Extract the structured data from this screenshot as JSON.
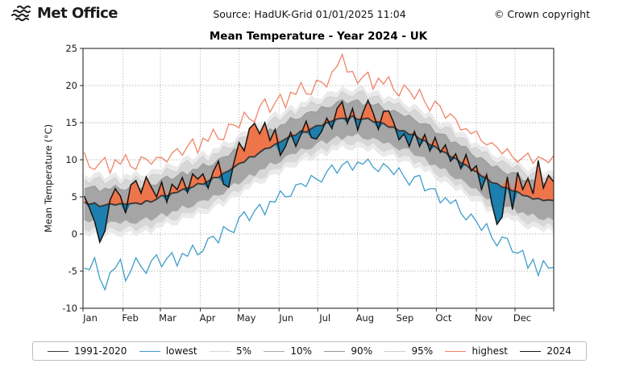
{
  "header": {
    "logo_text": "Met Office",
    "source": "Source: HadUK-Grid 01/01/2025 11:04",
    "copyright": "© Crown copyright"
  },
  "legend": {
    "entries": [
      {
        "label": "1991-2020",
        "color": "#3a3a3a"
      },
      {
        "label": "lowest",
        "color": "#3f9dc9"
      },
      {
        "label": "5%",
        "color": "#d6d6d6"
      },
      {
        "label": "10%",
        "color": "#ababab"
      },
      {
        "label": "90%",
        "color": "#969696"
      },
      {
        "label": "95%",
        "color": "#cdcdcd"
      },
      {
        "label": "highest",
        "color": "#ef8468"
      },
      {
        "label": "2024",
        "color": "#141414"
      }
    ]
  },
  "chart_data": {
    "type": "line",
    "title": "Mean Temperature - Year 2024 - UK",
    "ylabel": "Mean Temperature (°C)",
    "ylim": [
      -10,
      25
    ],
    "yticks": [
      -10,
      -5,
      0,
      5,
      10,
      15,
      20,
      25
    ],
    "grid": true,
    "grid_color": "#9b9b9b",
    "legend_position": "bottom",
    "x_months": [
      "Jan",
      "Feb",
      "Mar",
      "Apr",
      "May",
      "Jun",
      "Jul",
      "Aug",
      "Sep",
      "Oct",
      "Nov",
      "Dec"
    ],
    "month_start_day": [
      1,
      32,
      61,
      92,
      122,
      153,
      183,
      214,
      245,
      275,
      306,
      336
    ],
    "days_in_year": 366,
    "band_fills": {
      "fringe": "#eaeaea",
      "p5_p95": "#d7d7d7",
      "p10_p90": "#a5a5a5"
    },
    "anomaly_fills": {
      "above_mean": "#ee744a",
      "below_mean": "#1d7fad"
    },
    "x_day_of_year": [
      2,
      6,
      10,
      14,
      18,
      22,
      26,
      30,
      34,
      38,
      42,
      46,
      50,
      54,
      58,
      62,
      66,
      70,
      74,
      78,
      82,
      86,
      90,
      94,
      98,
      102,
      106,
      110,
      114,
      118,
      122,
      126,
      130,
      134,
      138,
      142,
      146,
      150,
      154,
      158,
      162,
      166,
      170,
      174,
      178,
      182,
      186,
      190,
      194,
      198,
      202,
      206,
      210,
      214,
      218,
      222,
      226,
      230,
      234,
      238,
      242,
      246,
      250,
      254,
      258,
      262,
      266,
      270,
      274,
      278,
      282,
      286,
      290,
      294,
      298,
      302,
      306,
      310,
      314,
      318,
      322,
      326,
      330,
      334,
      338,
      342,
      346,
      350,
      354,
      358,
      362,
      366
    ],
    "series": [
      {
        "name": "1991-2020",
        "color": "#3a3a3a",
        "values": [
          4.3,
          4.0,
          4.2,
          3.7,
          3.9,
          4.1,
          3.9,
          4.1,
          4.0,
          4.1,
          4.2,
          4.0,
          4.5,
          4.3,
          4.7,
          5.2,
          5.1,
          5.5,
          5.6,
          6.0,
          6.2,
          6.3,
          6.8,
          6.7,
          7.1,
          7.6,
          7.6,
          8.2,
          8.5,
          9.0,
          9.5,
          9.7,
          10.4,
          10.4,
          11.0,
          11.5,
          11.6,
          12.1,
          12.4,
          12.8,
          13.2,
          13.3,
          13.9,
          13.7,
          14.2,
          14.6,
          14.6,
          15.0,
          15.2,
          15.5,
          15.6,
          15.5,
          15.9,
          15.4,
          15.5,
          15.6,
          15.1,
          15.1,
          14.9,
          14.4,
          14.4,
          13.9,
          13.9,
          13.4,
          13.4,
          12.8,
          12.6,
          12.0,
          11.8,
          11.2,
          11.0,
          10.4,
          10.2,
          9.6,
          9.3,
          8.7,
          8.4,
          7.8,
          7.5,
          6.9,
          6.8,
          6.3,
          6.2,
          5.8,
          5.7,
          5.2,
          5.1,
          4.7,
          4.8,
          4.5,
          4.6,
          4.5
        ]
      },
      {
        "name": "lowest",
        "color": "#3f9dc9",
        "values": [
          -4.6,
          -4.8,
          -3.2,
          -6.0,
          -7.5,
          -5.2,
          -4.6,
          -3.4,
          -6.3,
          -5.0,
          -3.2,
          -4.4,
          -5.3,
          -3.6,
          -2.8,
          -4.4,
          -3.3,
          -2.5,
          -4.3,
          -2.6,
          -3.0,
          -1.5,
          -2.8,
          -2.3,
          -0.6,
          -0.3,
          -1.2,
          1.0,
          0.5,
          0.2,
          2.2,
          3.0,
          1.8,
          3.1,
          4.0,
          2.6,
          4.4,
          4.3,
          5.8,
          5.0,
          5.1,
          6.6,
          6.8,
          6.4,
          7.9,
          7.4,
          7.0,
          8.4,
          9.3,
          8.2,
          9.3,
          9.8,
          8.6,
          9.7,
          9.4,
          10.1,
          9.0,
          8.4,
          9.5,
          8.9,
          8.0,
          8.9,
          7.7,
          6.6,
          7.7,
          7.9,
          5.8,
          6.1,
          6.1,
          4.2,
          4.9,
          4.1,
          4.6,
          2.8,
          1.9,
          2.7,
          1.7,
          0.5,
          1.4,
          -0.5,
          -1.6,
          -0.4,
          -0.6,
          -2.4,
          -2.6,
          -2.2,
          -4.6,
          -3.4,
          -5.6,
          -3.6,
          -4.6,
          -4.5
        ]
      },
      {
        "name": "5%",
        "color": "#d6d6d6",
        "values": [
          0.7,
          0.4,
          1.0,
          0.7,
          0.3,
          1.0,
          0.6,
          0.3,
          0.9,
          1.2,
          0.4,
          0.9,
          1.3,
          0.7,
          1.6,
          1.6,
          2.4,
          1.9,
          1.9,
          2.9,
          2.9,
          2.8,
          3.7,
          3.5,
          3.4,
          4.3,
          4.9,
          4.4,
          5.3,
          5.9,
          5.6,
          6.7,
          6.8,
          7.8,
          7.5,
          7.6,
          8.7,
          8.8,
          8.8,
          9.8,
          9.7,
          9.7,
          10.6,
          11.1,
          10.5,
          11.2,
          11.7,
          11.1,
          12.1,
          12.0,
          12.7,
          12.1,
          12.0,
          12.6,
          12.3,
          11.8,
          12.3,
          11.6,
          11.1,
          11.4,
          11.5,
          10.3,
          10.6,
          10.5,
          9.5,
          9.8,
          9.1,
          9.3,
          8.2,
          7.6,
          7.9,
          7.3,
          6.5,
          6.8,
          5.8,
          5.1,
          5.2,
          5.1,
          3.7,
          3.8,
          3.7,
          2.6,
          3.0,
          2.5,
          2.6,
          1.8,
          1.3,
          1.8,
          1.5,
          1.0,
          1.6,
          0.9
        ]
      },
      {
        "name": "10%",
        "color": "#ababab",
        "values": [
          1.9,
          1.6,
          2.0,
          1.3,
          1.2,
          1.7,
          1.7,
          1.4,
          1.9,
          1.5,
          1.4,
          1.9,
          2.3,
          1.8,
          2.3,
          2.9,
          2.4,
          3.1,
          3.1,
          3.9,
          3.5,
          3.7,
          4.4,
          4.6,
          4.5,
          5.3,
          5.2,
          5.4,
          6.3,
          6.9,
          6.7,
          7.4,
          8.1,
          7.8,
          8.7,
          8.8,
          9.7,
          9.4,
          9.7,
          10.5,
          10.8,
          10.8,
          11.6,
          11.4,
          11.5,
          12.2,
          12.7,
          12.2,
          12.8,
          13.3,
          12.7,
          13.3,
          13.2,
          13.6,
          12.9,
          12.7,
          13.0,
          12.7,
          12.2,
          12.4,
          11.8,
          11.3,
          11.6,
          11.5,
          10.6,
          10.5,
          10.4,
          9.3,
          9.4,
          8.8,
          8.9,
          7.9,
          7.4,
          7.5,
          6.9,
          6.2,
          6.2,
          5.4,
          4.7,
          4.8,
          4.7,
          3.7,
          3.7,
          3.8,
          2.8,
          3.0,
          2.5,
          2.8,
          2.1,
          1.9,
          2.3,
          1.9
        ]
      },
      {
        "name": "90%",
        "color": "#969696",
        "values": [
          6.1,
          6.3,
          6.5,
          5.7,
          6.2,
          6.0,
          6.6,
          6.0,
          5.9,
          6.4,
          6.4,
          6.1,
          6.8,
          6.6,
          6.6,
          7.4,
          7.8,
          7.3,
          7.8,
          8.4,
          7.9,
          8.7,
          8.7,
          9.5,
          9.1,
          9.3,
          10.1,
          10.4,
          10.5,
          11.4,
          11.5,
          11.7,
          12.6,
          13.2,
          12.9,
          13.5,
          14.2,
          13.8,
          14.7,
          14.8,
          15.7,
          15.4,
          15.6,
          16.3,
          16.5,
          16.4,
          17.2,
          17.0,
          17.1,
          17.8,
          18.1,
          17.5,
          17.9,
          18.1,
          17.3,
          17.7,
          17.3,
          17.6,
          16.8,
          16.4,
          16.7,
          16.3,
          15.8,
          16.0,
          15.4,
          14.8,
          14.9,
          14.7,
          13.6,
          13.5,
          13.4,
          12.3,
          12.4,
          11.8,
          11.8,
          10.8,
          10.2,
          10.3,
          9.7,
          9.0,
          9.2,
          8.5,
          8.0,
          8.3,
          8.2,
          7.2,
          7.2,
          7.3,
          6.5,
          6.9,
          6.6,
          6.7
        ]
      },
      {
        "name": "95%",
        "color": "#cdcdcd",
        "values": [
          7.3,
          6.8,
          7.5,
          7.7,
          6.7,
          7.2,
          7.6,
          6.6,
          7.4,
          7.1,
          7.8,
          7.1,
          7.1,
          8.0,
          8.0,
          7.9,
          8.9,
          8.5,
          8.3,
          9.4,
          9.9,
          9.2,
          9.9,
          10.5,
          9.7,
          10.8,
          10.8,
          11.8,
          11.5,
          11.7,
          12.9,
          13.1,
          13.1,
          14.3,
          14.1,
          14.0,
          15.2,
          15.8,
          15.2,
          16.0,
          16.7,
          16.0,
          17.1,
          17.0,
          17.9,
          17.4,
          17.5,
          18.4,
          18.5,
          18.3,
          19.2,
          18.7,
          18.4,
          19.1,
          19.3,
          18.2,
          18.5,
          18.6,
          17.4,
          17.9,
          17.4,
          17.7,
          16.8,
          16.3,
          16.8,
          16.2,
          15.4,
          15.8,
          14.8,
          14.0,
          14.4,
          14.3,
          12.9,
          13.0,
          12.8,
          11.4,
          11.7,
          11.0,
          11.1,
          10.0,
          9.5,
          9.9,
          9.4,
          8.8,
          9.3,
          8.4,
          7.7,
          8.3,
          8.5,
          7.4,
          7.8,
          7.8
        ]
      },
      {
        "name": "highest",
        "color": "#ef8468",
        "values": [
          11.0,
          9.0,
          8.7,
          9.6,
          10.3,
          8.2,
          10.0,
          9.4,
          10.7,
          9.1,
          8.7,
          10.4,
          10.1,
          9.4,
          10.3,
          10.3,
          9.7,
          10.9,
          11.5,
          10.6,
          11.8,
          12.8,
          10.9,
          12.9,
          12.5,
          14.1,
          12.8,
          12.7,
          14.8,
          14.7,
          14.3,
          16.4,
          15.5,
          15.1,
          17.2,
          18.2,
          16.4,
          17.7,
          18.8,
          17.0,
          19.1,
          18.8,
          20.4,
          18.9,
          18.8,
          20.7,
          20.5,
          19.8,
          21.8,
          22.6,
          24.2,
          21.8,
          21.9,
          20.3,
          21.2,
          21.8,
          19.5,
          21.0,
          20.2,
          21.2,
          19.4,
          18.6,
          20.1,
          19.3,
          18.2,
          19.5,
          17.8,
          16.6,
          17.9,
          17.2,
          15.6,
          16.2,
          15.5,
          14.0,
          14.2,
          13.5,
          13.9,
          12.5,
          12.0,
          12.3,
          11.7,
          10.8,
          11.5,
          10.4,
          9.7,
          10.3,
          10.9,
          9.5,
          10.4,
          10.1,
          9.6,
          10.6
        ]
      },
      {
        "name": "2024",
        "color": "#141414",
        "values": [
          5.1,
          3.5,
          1.7,
          -1.1,
          0.4,
          4.6,
          6.1,
          5.1,
          2.8,
          6.6,
          7.2,
          5.5,
          7.7,
          6.3,
          5.0,
          7.0,
          4.3,
          6.7,
          6.0,
          7.6,
          5.6,
          8.1,
          7.4,
          8.1,
          6.2,
          8.4,
          9.8,
          6.7,
          6.3,
          9.6,
          12.3,
          11.2,
          14.2,
          14.9,
          13.5,
          15.0,
          12.6,
          14.1,
          10.6,
          11.8,
          13.7,
          11.8,
          13.4,
          15.2,
          13.0,
          12.8,
          13.8,
          15.6,
          14.2,
          16.9,
          17.8,
          14.9,
          16.9,
          14.0,
          16.3,
          18.0,
          16.3,
          14.1,
          16.5,
          16.6,
          15.0,
          12.7,
          13.5,
          11.8,
          13.8,
          11.8,
          13.4,
          11.2,
          13.0,
          11.0,
          12.0,
          9.8,
          10.8,
          8.8,
          10.7,
          8.5,
          9.2,
          6.0,
          8.0,
          4.1,
          1.3,
          2.3,
          7.7,
          3.3,
          8.3,
          6.0,
          7.5,
          5.4,
          9.9,
          6.2,
          7.9,
          7.0
        ]
      }
    ]
  }
}
